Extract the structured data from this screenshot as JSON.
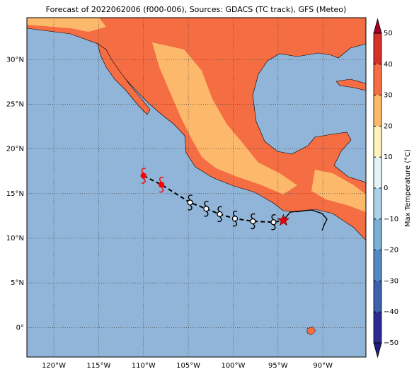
{
  "map_data": {
    "title": "Forecast of 2022062006 (f000-006), Sources: GDACS (TC track), GFS (Meteo)",
    "xlim": [
      -123,
      -85.2
    ],
    "ylim": [
      -3.3,
      34.7
    ],
    "xticks": [
      {
        "value": -120,
        "label": "120°W"
      },
      {
        "value": -115,
        "label": "115°W"
      },
      {
        "value": -110,
        "label": "110°W"
      },
      {
        "value": -105,
        "label": "105°W"
      },
      {
        "value": -100,
        "label": "100°W"
      },
      {
        "value": -95,
        "label": "95°W"
      },
      {
        "value": -90,
        "label": "90°W"
      }
    ],
    "yticks": [
      {
        "value": 0,
        "label": "0°"
      },
      {
        "value": 5,
        "label": "5°N"
      },
      {
        "value": 10,
        "label": "10°N"
      },
      {
        "value": 15,
        "label": "15°N"
      },
      {
        "value": 20,
        "label": "20°N"
      },
      {
        "value": 25,
        "label": "25°N"
      },
      {
        "value": 30,
        "label": "30°N"
      }
    ],
    "grid": true,
    "forecast_track": {
      "lon": [
        -110,
        -108,
        -104.8,
        -103,
        -101.5,
        -99.8,
        -97.8,
        -95.5
      ],
      "lat": [
        17,
        16,
        14,
        13.3,
        12.7,
        12.2,
        11.9,
        11.8
      ],
      "colors": [
        "red",
        "red",
        "black",
        "black",
        "black",
        "black",
        "black",
        "black"
      ]
    },
    "current_position": {
      "lon": -94.4,
      "lat": 12.0,
      "color": "#e8000b"
    },
    "colorbar": {
      "label": "Max Temperature (°C)",
      "ticks": [
        {
          "value": -50,
          "label": "−50"
        },
        {
          "value": -40,
          "label": "−40"
        },
        {
          "value": -30,
          "label": "−30"
        },
        {
          "value": -20,
          "label": "−20"
        },
        {
          "value": -10,
          "label": "−10"
        },
        0,
        10,
        20,
        30,
        40,
        50
      ],
      "colors": [
        "#2b2c8f",
        "#3d62ab",
        "#5389c0",
        "#7bafd6",
        "#a9d2e7",
        "#e3f4f8",
        "#fff3bd",
        "#fdb96b",
        "#f46d43",
        "#d73027"
      ],
      "extend_colors": [
        "#1d1f7a",
        "#a50026"
      ]
    }
  }
}
